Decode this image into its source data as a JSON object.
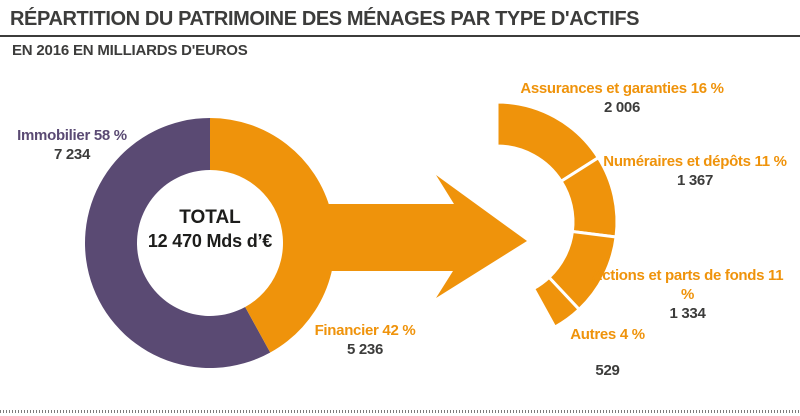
{
  "chart_data": {
    "type": "donut",
    "title": "RÉPARTITION DU PATRIMOINE DES MÉNAGES PAR TYPE D'ACTIFS",
    "subtitle": "EN 2016 EN MILLIARDS D'EUROS",
    "unit": "milliards d'euros",
    "colors": {
      "immobilier": "#5A4A73",
      "financier": "#EF930B",
      "ink": "#3C3C3B"
    },
    "total": {
      "label": "TOTAL",
      "value": 12470,
      "value_text": "12 470 Mds d’€"
    },
    "donut": {
      "note": "left donut, percent of total household wealth, clockwise from 12 o'clock",
      "segments": [
        {
          "key": "immobilier",
          "name": "Immobilier",
          "pct": 58,
          "value": 7234,
          "label": "Immobilier 58 %",
          "value_text": "7 234",
          "color_key": "immobilier"
        },
        {
          "key": "financier",
          "name": "Financier",
          "pct": 42,
          "value": 5236,
          "label": "Financier 42 %",
          "value_text": "5 236",
          "color_key": "financier"
        }
      ]
    },
    "breakdown": {
      "note": "right partial ring detailing financial assets, same angular scale (3.6° per %), clockwise from 12 o'clock",
      "segments": [
        {
          "key": "assurances",
          "name": "Assurances et garanties",
          "pct": 16,
          "value": 2006,
          "label": "Assurances et garanties 16 %",
          "value_text": "2 006"
        },
        {
          "key": "numeraires",
          "name": "Numéraires et dépôts",
          "pct": 11,
          "value": 1367,
          "label": "Numéraires et dépôts 11 %",
          "value_text": "1 367"
        },
        {
          "key": "actions",
          "name": "Actions et parts de fonds",
          "pct": 11,
          "value": 1334,
          "label": "Actions et parts de fonds 11 %",
          "value_text": "1 334"
        },
        {
          "key": "autres",
          "name": "Autres",
          "pct": 4,
          "value": 529,
          "label": "Autres 4 %",
          "value_text": "529"
        }
      ]
    },
    "layout_hints": {
      "legend": "none",
      "grid": "off",
      "flow_arrow": "orange arrow from donut financial segment to breakdown ring"
    }
  }
}
